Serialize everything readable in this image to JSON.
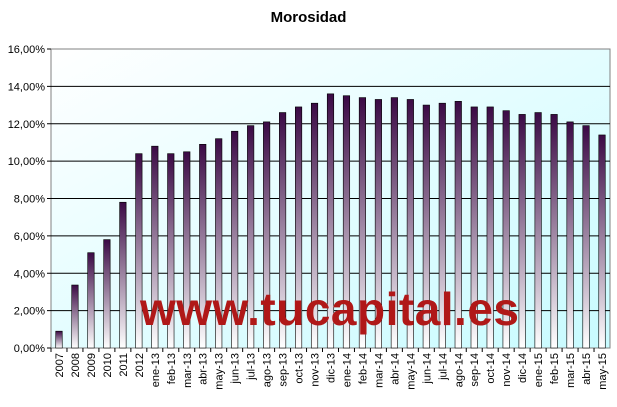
{
  "watermark": "www.tucapital.es",
  "colors": {
    "bar_top": "#3b0a45",
    "bar_bottom": "#ffffff",
    "plot_bg_right": "#c8fbff",
    "plot_bg_left": "#ffffff",
    "watermark": "#b01818"
  },
  "chart_data": {
    "type": "bar",
    "title": "Morosidad",
    "xlabel": "",
    "ylabel": "",
    "ylim": [
      0,
      16
    ],
    "yticks": [
      "0,00%",
      "2,00%",
      "4,00%",
      "6,00%",
      "8,00%",
      "10,00%",
      "12,00%",
      "14,00%",
      "16,00%"
    ],
    "grid": true,
    "categories": [
      "2007",
      "2008",
      "2009",
      "2010",
      "2011",
      "2012",
      "ene-13",
      "feb-13",
      "mar-13",
      "abr-13",
      "may-13",
      "jun-13",
      "jul-13",
      "ago-13",
      "sep-13",
      "oct-13",
      "nov-13",
      "dic-13",
      "ene-14",
      "feb-14",
      "mar-14",
      "abr-14",
      "may-14",
      "jun-14",
      "jul-14",
      "ago-14",
      "sep-14",
      "oct-14",
      "nov-14",
      "dic-14",
      "ene-15",
      "feb-15",
      "mar-15",
      "abr-15",
      "may-15"
    ],
    "values": [
      0.9,
      3.37,
      5.1,
      5.8,
      7.8,
      10.4,
      10.8,
      10.4,
      10.5,
      10.9,
      11.2,
      11.6,
      11.9,
      12.1,
      12.6,
      12.9,
      13.1,
      13.6,
      13.5,
      13.4,
      13.3,
      13.4,
      13.3,
      13.0,
      13.1,
      13.2,
      12.9,
      12.9,
      12.7,
      12.5,
      12.6,
      12.5,
      12.1,
      11.9,
      11.4
    ]
  }
}
